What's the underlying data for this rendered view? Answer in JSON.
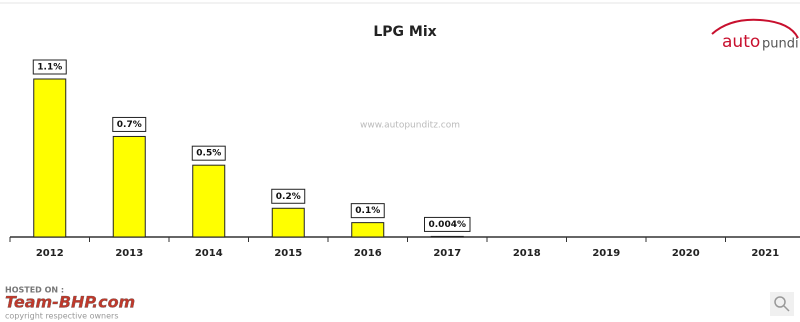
{
  "chart_data": {
    "type": "bar",
    "title": "LPG Mix",
    "categories": [
      "2012",
      "2013",
      "2014",
      "2015",
      "2016",
      "2017",
      "2018",
      "2019",
      "2020",
      "2021"
    ],
    "values": [
      1.1,
      0.7,
      0.5,
      0.2,
      0.1,
      0.004,
      null,
      null,
      null,
      null
    ],
    "value_labels": [
      "1.1%",
      "0.7%",
      "0.5%",
      "0.2%",
      "0.1%",
      "0.004%",
      null,
      null,
      null,
      null
    ],
    "color": "#ffff00",
    "watermark": "www.autopunditz.com"
  },
  "logo": {
    "part1": "auto",
    "part2": "pundi"
  },
  "hosting": {
    "hosted_on": "HOSTED ON :",
    "site": "Team-BHP.com",
    "copyright": "copyright respective owners"
  }
}
